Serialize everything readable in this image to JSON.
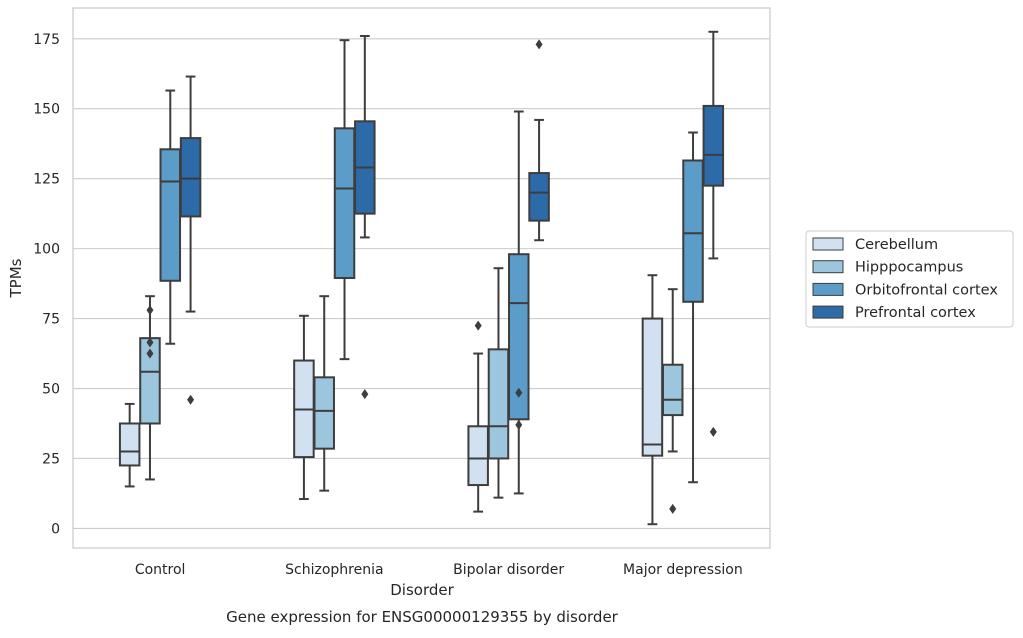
{
  "chart_data": {
    "type": "box",
    "title": "",
    "caption": "Gene expression for ENSG00000129355 by disorder",
    "xlabel": "Disorder",
    "ylabel": "TPMs",
    "ylim": [
      -7,
      186
    ],
    "yticks": [
      0,
      25,
      50,
      75,
      100,
      125,
      150,
      175
    ],
    "grid": true,
    "legend_position": "right",
    "categories": [
      "Control",
      "Schizophrenia",
      "Bipolar disorder",
      "Major depression"
    ],
    "series": [
      {
        "name": "Cerebellum",
        "color": "#d1e1f1",
        "boxes": [
          {
            "whisker_low": 15,
            "q1": 22.5,
            "median": 27.5,
            "q3": 37.5,
            "whisker_high": 44.5,
            "outliers": []
          },
          {
            "whisker_low": 10.5,
            "q1": 25.5,
            "median": 42.5,
            "q3": 60,
            "whisker_high": 76,
            "outliers": []
          },
          {
            "whisker_low": 6,
            "q1": 15.5,
            "median": 25,
            "q3": 36.5,
            "whisker_high": 62.5,
            "outliers": [
              72.5
            ]
          },
          {
            "whisker_low": 1.5,
            "q1": 26,
            "median": 30,
            "q3": 75,
            "whisker_high": 90.5,
            "outliers": []
          }
        ]
      },
      {
        "name": "Hipppocampus",
        "color": "#9cc5de",
        "boxes": [
          {
            "whisker_low": 17.5,
            "q1": 37.5,
            "median": 56,
            "q3": 68,
            "whisker_high": 83,
            "outliers": [
              78,
              66.5,
              62.5
            ]
          },
          {
            "whisker_low": 13.5,
            "q1": 28.5,
            "median": 42,
            "q3": 54,
            "whisker_high": 83,
            "outliers": []
          },
          {
            "whisker_low": 11,
            "q1": 25,
            "median": 36.5,
            "q3": 64,
            "whisker_high": 93,
            "outliers": []
          },
          {
            "whisker_low": 27.5,
            "q1": 40.5,
            "median": 46,
            "q3": 58.5,
            "whisker_high": 85.5,
            "outliers": [
              7
            ]
          }
        ]
      },
      {
        "name": "Orbitofrontal cortex",
        "color": "#5b9cc8",
        "boxes": [
          {
            "whisker_low": 66,
            "q1": 88.5,
            "median": 124,
            "q3": 135.5,
            "whisker_high": 156.5,
            "outliers": []
          },
          {
            "whisker_low": 60.5,
            "q1": 89.5,
            "median": 121.5,
            "q3": 143,
            "whisker_high": 174.5,
            "outliers": []
          },
          {
            "whisker_low": 12.5,
            "q1": 39,
            "median": 80.5,
            "q3": 98,
            "whisker_high": 149,
            "outliers": [
              48.5,
              37
            ]
          },
          {
            "whisker_low": 16.5,
            "q1": 81,
            "median": 105.5,
            "q3": 131.5,
            "whisker_high": 141.5,
            "outliers": []
          }
        ]
      },
      {
        "name": "Prefrontal cortex",
        "color": "#2d6aa8",
        "boxes": [
          {
            "whisker_low": 77.5,
            "q1": 111.5,
            "median": 125,
            "q3": 139.5,
            "whisker_high": 161.5,
            "outliers": [
              46
            ]
          },
          {
            "whisker_low": 104,
            "q1": 112.5,
            "median": 129,
            "q3": 145.5,
            "whisker_high": 176,
            "outliers": [
              48
            ]
          },
          {
            "whisker_low": 103,
            "q1": 110,
            "median": 120,
            "q3": 127,
            "whisker_high": 146,
            "outliers": [
              173
            ]
          },
          {
            "whisker_low": 96.5,
            "q1": 122.5,
            "median": 133.5,
            "q3": 151,
            "whisker_high": 177.5,
            "outliers": [
              34.5
            ]
          }
        ]
      }
    ]
  }
}
